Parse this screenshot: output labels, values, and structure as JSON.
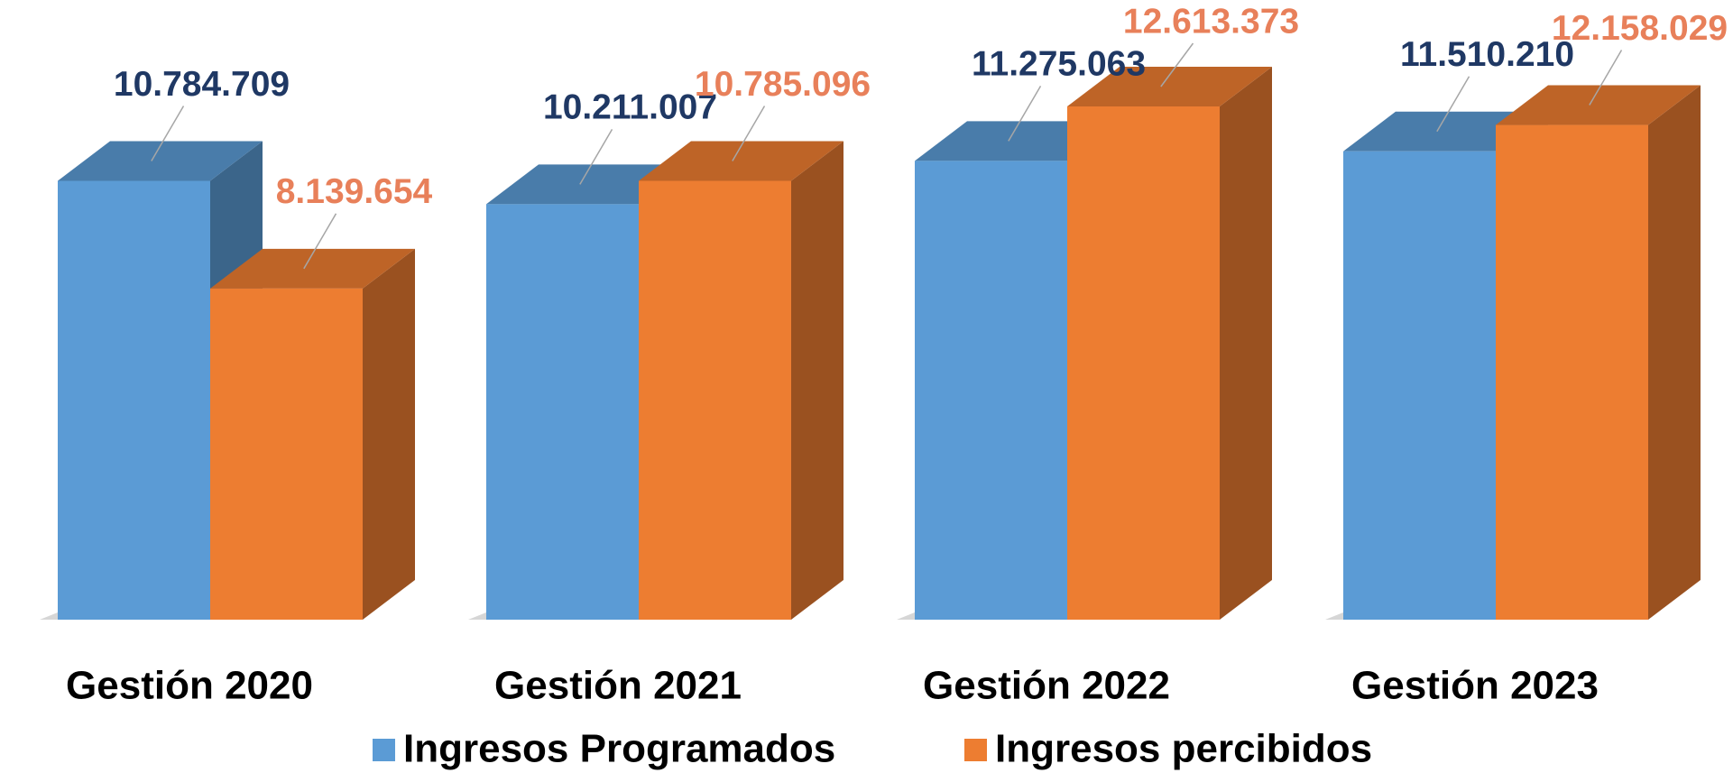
{
  "chart_data": {
    "type": "bar3d",
    "categories": [
      "Gestión  2020",
      "Gestión  2021",
      "Gestión  2022",
      "Gestión  2023"
    ],
    "series": [
      {
        "name": "Ingresos Programados",
        "color": "#5b9bd5",
        "label_color": "#1f3864",
        "values": [
          10784709,
          10211007,
          11275063,
          11510210
        ],
        "value_labels": [
          "10.784.709",
          "10.211.007",
          "11.275.063",
          "11.510.210"
        ]
      },
      {
        "name": "Ingresos percibidos",
        "color": "#ed7d31",
        "label_color": "#e8805a",
        "values": [
          8139654,
          10785096,
          12613373,
          12158029
        ],
        "value_labels": [
          "8.139.654",
          "10.785.096",
          "12.613.373",
          "12.158.029"
        ]
      }
    ],
    "legend": "bottom"
  }
}
